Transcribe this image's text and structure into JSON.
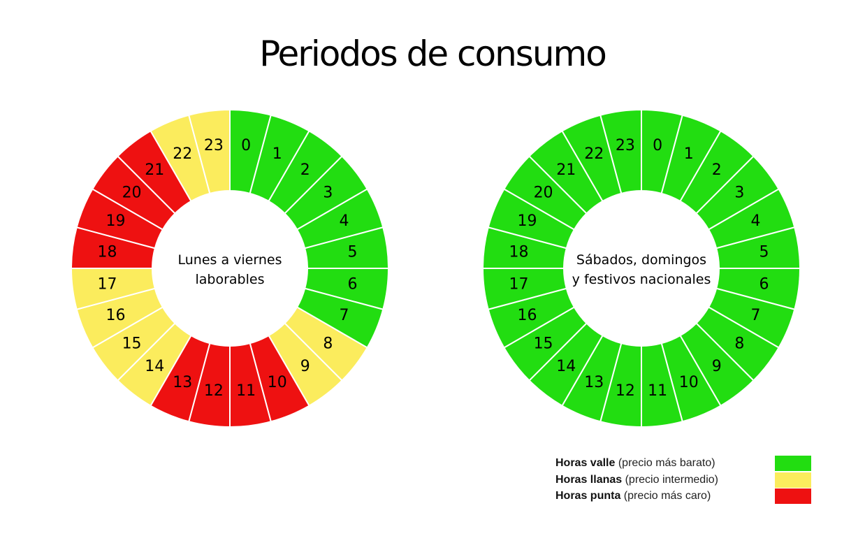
{
  "title": "Periodos de consumo",
  "colors": {
    "valle": "#22dd11",
    "llanas": "#fbec5d",
    "punta": "#ee1111"
  },
  "legend": [
    {
      "key": "valle",
      "bold": "Horas valle",
      "rest": " (precio más barato)"
    },
    {
      "key": "llanas",
      "bold": "Horas llanas",
      "rest": " (precio intermedio)"
    },
    {
      "key": "punta",
      "bold": "Horas punta",
      "rest": " (precio más caro)"
    }
  ],
  "chart_data": [
    {
      "type": "pie",
      "variant": "donut",
      "center_label": [
        "Lunes a viernes",
        "laborables"
      ],
      "categories": [
        "0",
        "1",
        "2",
        "3",
        "4",
        "5",
        "6",
        "7",
        "8",
        "9",
        "10",
        "11",
        "12",
        "13",
        "14",
        "15",
        "16",
        "17",
        "18",
        "19",
        "20",
        "21",
        "22",
        "23"
      ],
      "period": [
        "valle",
        "valle",
        "valle",
        "valle",
        "valle",
        "valle",
        "valle",
        "valle",
        "llanas",
        "llanas",
        "punta",
        "punta",
        "punta",
        "punta",
        "llanas",
        "llanas",
        "llanas",
        "llanas",
        "punta",
        "punta",
        "punta",
        "punta",
        "llanas",
        "llanas"
      ]
    },
    {
      "type": "pie",
      "variant": "donut",
      "center_label": [
        "Sábados, domingos",
        "y festivos nacionales"
      ],
      "categories": [
        "0",
        "1",
        "2",
        "3",
        "4",
        "5",
        "6",
        "7",
        "8",
        "9",
        "10",
        "11",
        "12",
        "13",
        "14",
        "15",
        "16",
        "17",
        "18",
        "19",
        "20",
        "21",
        "22",
        "23"
      ],
      "period": [
        "valle",
        "valle",
        "valle",
        "valle",
        "valle",
        "valle",
        "valle",
        "valle",
        "valle",
        "valle",
        "valle",
        "valle",
        "valle",
        "valle",
        "valle",
        "valle",
        "valle",
        "valle",
        "valle",
        "valle",
        "valle",
        "valle",
        "valle",
        "valle"
      ]
    }
  ]
}
